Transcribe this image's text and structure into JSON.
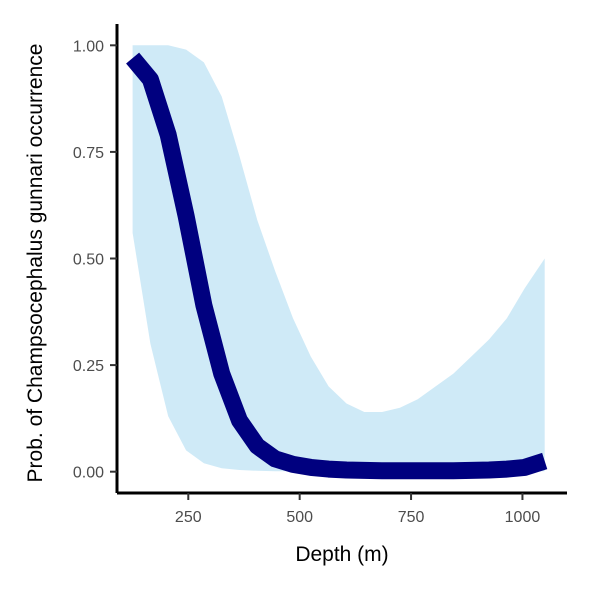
{
  "chart_data": {
    "type": "line",
    "xlabel": "Depth (m)",
    "ylabel": "Prob. of  Champsocephalus gunnari  occurrence",
    "xlim": [
      90,
      1100
    ],
    "ylim": [
      -0.05,
      1.05
    ],
    "x_ticks": [
      250,
      500,
      750,
      1000
    ],
    "x_tick_labels": [
      "250",
      "500",
      "750",
      "1000"
    ],
    "y_ticks": [
      0,
      0.25,
      0.5,
      0.75,
      1
    ],
    "y_tick_labels": [
      "0.00",
      "0.25",
      "0.50",
      "0.75",
      "1.00"
    ],
    "grid": false,
    "legend": "none",
    "series": [
      {
        "x": [
          125,
          165,
          205,
          245,
          285,
          325,
          365,
          405,
          445,
          485,
          525,
          565,
          605,
          645,
          685,
          725,
          765,
          805,
          845,
          885,
          925,
          965,
          1005,
          1050
        ],
        "y": [
          0.97,
          0.92,
          0.79,
          0.6,
          0.39,
          0.23,
          0.12,
          0.06,
          0.03,
          0.017,
          0.01,
          0.006,
          0.004,
          0.003,
          0.002,
          0.002,
          0.002,
          0.002,
          0.002,
          0.003,
          0.004,
          0.006,
          0.01,
          0.025
        ],
        "lower": [
          0.56,
          0.3,
          0.13,
          0.05,
          0.02,
          0.008,
          0.004,
          0.002,
          0.001,
          0.001,
          0.001,
          0.001,
          0.001,
          0.001,
          0.001,
          0.001,
          0.001,
          0.001,
          0.001,
          0.001,
          0.001,
          0.001,
          0.001,
          0.001
        ],
        "upper": [
          1.0,
          1.0,
          1.0,
          0.99,
          0.96,
          0.88,
          0.74,
          0.59,
          0.47,
          0.36,
          0.27,
          0.2,
          0.16,
          0.14,
          0.14,
          0.15,
          0.17,
          0.2,
          0.23,
          0.27,
          0.31,
          0.36,
          0.43,
          0.5
        ],
        "line_color": "#00007f",
        "band_color": "#cfeaf7"
      }
    ]
  }
}
